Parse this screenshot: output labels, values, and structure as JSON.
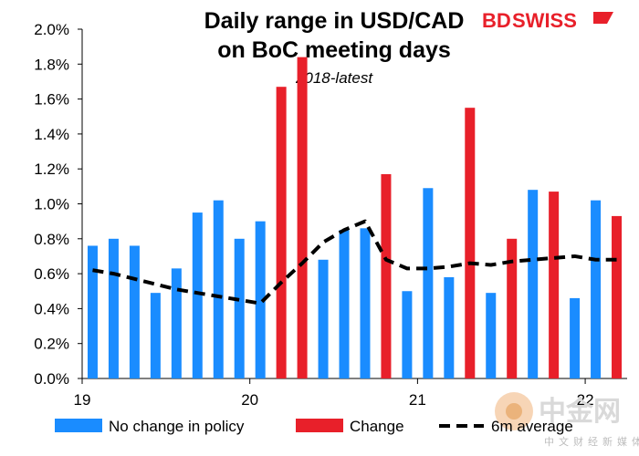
{
  "brand": {
    "logo_bd": "BD",
    "logo_swiss": "SWISS",
    "watermark_text": "中金网",
    "watermark_sub": "中文财经新媒体"
  },
  "colors": {
    "no_change": "#1a8cff",
    "change": "#e8202a",
    "average": "#000000",
    "logo": "#e8202a"
  },
  "chart_data": {
    "type": "bar",
    "title_line1": "Daily range in USD/CAD",
    "title_line2": "on BoC meeting days",
    "subtitle": "2018-latest",
    "ylim": [
      0,
      2.0
    ],
    "y_ticks": [
      "0.0%",
      "0.2%",
      "0.4%",
      "0.6%",
      "0.8%",
      "1.0%",
      "1.2%",
      "1.4%",
      "1.6%",
      "1.8%",
      "2.0%"
    ],
    "x_ticks": [
      "19",
      "20",
      "21",
      "22"
    ],
    "grid": false,
    "legend_position": "bottom",
    "series": [
      {
        "name": "No change in policy",
        "style": "bar",
        "values": [
          0.76,
          0.8,
          0.76,
          0.49,
          0.63,
          0.95,
          1.02,
          0.8,
          0.9,
          null,
          null,
          0.68,
          0.85,
          0.86,
          null,
          0.5,
          1.09,
          0.58,
          null,
          0.49,
          null,
          1.08,
          null,
          0.46,
          1.02,
          null
        ]
      },
      {
        "name": "Change",
        "style": "bar",
        "values": [
          null,
          null,
          null,
          null,
          null,
          null,
          null,
          null,
          null,
          1.67,
          1.84,
          null,
          null,
          null,
          1.17,
          null,
          null,
          null,
          1.55,
          null,
          0.8,
          null,
          1.07,
          null,
          null,
          0.93
        ]
      },
      {
        "name": "6m average",
        "style": "dashed-line",
        "values": [
          0.62,
          0.6,
          0.57,
          0.54,
          0.51,
          0.49,
          0.47,
          0.45,
          0.43,
          0.55,
          0.66,
          0.78,
          0.85,
          0.9,
          0.68,
          0.63,
          0.63,
          0.64,
          0.66,
          0.65,
          0.67,
          0.68,
          0.69,
          0.7,
          0.68,
          0.68
        ]
      }
    ]
  }
}
